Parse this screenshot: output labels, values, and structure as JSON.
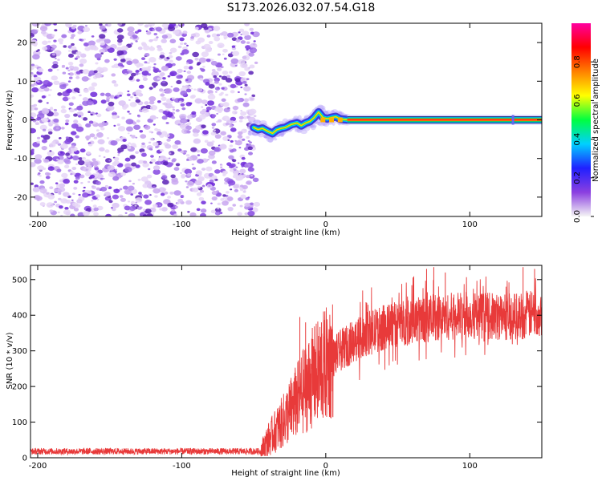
{
  "title": "S173.2026.032.07.54.G18",
  "chart_data": [
    {
      "type": "heatmap",
      "name": "spectrogram",
      "xlabel": "Height of straight line (km)",
      "ylabel": "Frequency (Hz)",
      "xlim": [
        -205,
        150
      ],
      "ylim": [
        -25,
        25
      ],
      "xticks": [
        -200,
        -100,
        0,
        100
      ],
      "yticks": [
        -20,
        -10,
        0,
        10,
        20
      ],
      "xtick_labels": [
        "-200",
        "-100",
        "0",
        "100"
      ],
      "ytick_labels": [
        "-20",
        "-10",
        "0",
        "10",
        "20"
      ],
      "noise_region": [
        -205,
        -50
      ],
      "transition_region": [
        -50,
        15
      ],
      "carrier_frequency": 0,
      "carrier_path": [
        {
          "x": -50,
          "y": -2.0
        },
        {
          "x": -47,
          "y": -2.5
        },
        {
          "x": -44,
          "y": -2.2
        },
        {
          "x": -40,
          "y": -3.0
        },
        {
          "x": -37,
          "y": -3.5
        },
        {
          "x": -34,
          "y": -2.6
        },
        {
          "x": -31,
          "y": -2.2
        },
        {
          "x": -28,
          "y": -2.0
        },
        {
          "x": -24,
          "y": -1.2
        },
        {
          "x": -20,
          "y": -0.8
        },
        {
          "x": -17,
          "y": -1.5
        },
        {
          "x": -14,
          "y": -0.8
        },
        {
          "x": -11,
          "y": -0.4
        },
        {
          "x": -8,
          "y": 0.6
        },
        {
          "x": -5,
          "y": 2.0
        },
        {
          "x": -2,
          "y": 0.6
        },
        {
          "x": 1,
          "y": 0.3
        },
        {
          "x": 4,
          "y": 0.6
        },
        {
          "x": 7,
          "y": 0.8
        },
        {
          "x": 10,
          "y": 0.2
        },
        {
          "x": 15,
          "y": 0.0
        }
      ]
    },
    {
      "type": "line",
      "name": "snr",
      "xlabel": "Height of straight line (km)",
      "ylabel": "SNR (10 * v/v)",
      "xlim": [
        -205,
        150
      ],
      "ylim": [
        0,
        540
      ],
      "xticks": [
        -200,
        -100,
        0,
        100
      ],
      "yticks": [
        0,
        100,
        200,
        300,
        400,
        500
      ],
      "xtick_labels": [
        "-200",
        "-100",
        "0",
        "100"
      ],
      "ytick_labels": [
        "0",
        "100",
        "200",
        "300",
        "400",
        "500"
      ],
      "series": [
        {
          "name": "SNR",
          "color": "#e83a3a",
          "trend": [
            {
              "x": -205,
              "y": 18
            },
            {
              "x": -45,
              "y": 18
            },
            {
              "x": -40,
              "y": 50
            },
            {
              "x": -30,
              "y": 100
            },
            {
              "x": -20,
              "y": 160
            },
            {
              "x": -10,
              "y": 220
            },
            {
              "x": 0,
              "y": 260
            },
            {
              "x": 10,
              "y": 300
            },
            {
              "x": 20,
              "y": 330
            },
            {
              "x": 30,
              "y": 350
            },
            {
              "x": 40,
              "y": 365
            },
            {
              "x": 60,
              "y": 385
            },
            {
              "x": 80,
              "y": 395
            },
            {
              "x": 100,
              "y": 400
            },
            {
              "x": 120,
              "y": 395
            },
            {
              "x": 140,
              "y": 400
            },
            {
              "x": 150,
              "y": 410
            }
          ],
          "spikes": [
            {
              "x": -18,
              "y": 395
            },
            {
              "x": -14,
              "y": 380
            },
            {
              "x": -3,
              "y": 380
            },
            {
              "x": 70,
              "y": 530
            },
            {
              "x": 75,
              "y": 535
            },
            {
              "x": 83,
              "y": 520
            },
            {
              "x": 137,
              "y": 535
            },
            {
              "x": 145,
              "y": 530
            }
          ]
        }
      ]
    }
  ],
  "colorbar": {
    "label": "Normalized spectral amplitude",
    "range": [
      0,
      1
    ],
    "ticks": [
      0.0,
      0.2,
      0.4,
      0.6,
      0.8
    ],
    "tick_labels": [
      "0.0",
      "0.2",
      "0.4",
      "0.6",
      "0.8"
    ],
    "stops": [
      "#f5f5f5",
      "#8b3fe0",
      "#2020ff",
      "#00d0ff",
      "#00ff40",
      "#ffff00",
      "#ff8000",
      "#ff0000",
      "#ff00a0"
    ]
  }
}
